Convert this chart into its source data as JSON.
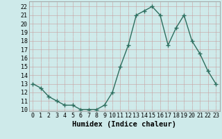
{
  "x": [
    0,
    1,
    2,
    3,
    4,
    5,
    6,
    7,
    8,
    9,
    10,
    11,
    12,
    13,
    14,
    15,
    16,
    17,
    18,
    19,
    20,
    21,
    22,
    23
  ],
  "y": [
    13.0,
    12.5,
    11.5,
    11.0,
    10.5,
    10.5,
    10.0,
    10.0,
    10.0,
    10.5,
    12.0,
    15.0,
    17.5,
    21.0,
    21.5,
    22.0,
    21.0,
    17.5,
    19.5,
    21.0,
    18.0,
    16.5,
    14.5,
    13.0
  ],
  "xlabel": "Humidex (Indice chaleur)",
  "xlim": [
    -0.5,
    23.5
  ],
  "ylim": [
    9.8,
    22.6
  ],
  "yticks": [
    10,
    11,
    12,
    13,
    14,
    15,
    16,
    17,
    18,
    19,
    20,
    21,
    22
  ],
  "xticks": [
    0,
    1,
    2,
    3,
    4,
    5,
    6,
    7,
    8,
    9,
    10,
    11,
    12,
    13,
    14,
    15,
    16,
    17,
    18,
    19,
    20,
    21,
    22,
    23
  ],
  "xtick_labels": [
    "0",
    "1",
    "2",
    "3",
    "4",
    "5",
    "6",
    "7",
    "8",
    "9",
    "10",
    "11",
    "12",
    "13",
    "14",
    "15",
    "16",
    "17",
    "18",
    "19",
    "20",
    "21",
    "22",
    "23"
  ],
  "line_color": "#2d6e5e",
  "marker": "+",
  "marker_size": 4,
  "marker_lw": 1.0,
  "line_width": 1.0,
  "bg_color": "#ceeaea",
  "grid_major_color": "#b8d8d8",
  "grid_minor_color": "#d8ecec",
  "figure_bg": "#ceeaea",
  "tick_fontsize": 6.0,
  "xlabel_fontsize": 7.5
}
